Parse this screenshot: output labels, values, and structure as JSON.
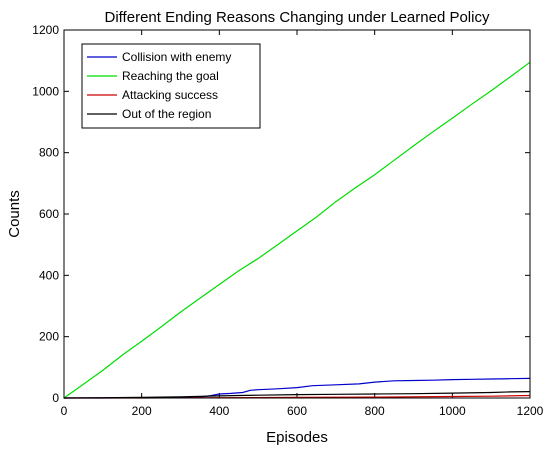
{
  "chart_data": {
    "type": "line",
    "title": "Different Ending Reasons Changing under Learned Policy",
    "xlabel": "Episodes",
    "ylabel": "Counts",
    "xlim": [
      0,
      1200
    ],
    "ylim": [
      0,
      1200
    ],
    "x_ticks": [
      0,
      200,
      400,
      600,
      800,
      1000,
      1200
    ],
    "y_ticks": [
      0,
      200,
      400,
      600,
      800,
      1000,
      1200
    ],
    "grid": false,
    "legend_position": "top-left",
    "series": [
      {
        "name": "Collision with enemy",
        "color": "#0000cc",
        "points": [
          [
            0,
            0
          ],
          [
            100,
            0
          ],
          [
            200,
            1
          ],
          [
            300,
            2
          ],
          [
            350,
            3
          ],
          [
            380,
            8
          ],
          [
            400,
            13
          ],
          [
            430,
            15
          ],
          [
            460,
            18
          ],
          [
            480,
            25
          ],
          [
            500,
            27
          ],
          [
            550,
            30
          ],
          [
            600,
            34
          ],
          [
            640,
            40
          ],
          [
            700,
            43
          ],
          [
            760,
            46
          ],
          [
            800,
            52
          ],
          [
            850,
            56
          ],
          [
            900,
            57
          ],
          [
            950,
            58
          ],
          [
            1000,
            60
          ],
          [
            1050,
            61
          ],
          [
            1100,
            62
          ],
          [
            1150,
            63
          ],
          [
            1200,
            64
          ]
        ]
      },
      {
        "name": "Reaching the goal",
        "color": "#00dd00",
        "points": [
          [
            0,
            0
          ],
          [
            50,
            45
          ],
          [
            100,
            90
          ],
          [
            150,
            140
          ],
          [
            200,
            185
          ],
          [
            250,
            232
          ],
          [
            300,
            280
          ],
          [
            350,
            325
          ],
          [
            400,
            370
          ],
          [
            450,
            415
          ],
          [
            500,
            455
          ],
          [
            550,
            500
          ],
          [
            600,
            545
          ],
          [
            650,
            590
          ],
          [
            700,
            640
          ],
          [
            750,
            685
          ],
          [
            800,
            728
          ],
          [
            850,
            775
          ],
          [
            900,
            822
          ],
          [
            950,
            868
          ],
          [
            1000,
            912
          ],
          [
            1050,
            958
          ],
          [
            1100,
            1002
          ],
          [
            1150,
            1048
          ],
          [
            1200,
            1095
          ]
        ]
      },
      {
        "name": "Attacking success",
        "color": "#cc0000",
        "points": [
          [
            0,
            0
          ],
          [
            200,
            0
          ],
          [
            400,
            1
          ],
          [
            600,
            2
          ],
          [
            800,
            3
          ],
          [
            1000,
            5
          ],
          [
            1100,
            6
          ],
          [
            1200,
            8
          ]
        ]
      },
      {
        "name": "Out of the region",
        "color": "#000000",
        "points": [
          [
            0,
            0
          ],
          [
            100,
            1
          ],
          [
            200,
            2
          ],
          [
            300,
            4
          ],
          [
            400,
            7
          ],
          [
            450,
            8
          ],
          [
            500,
            9
          ],
          [
            600,
            11
          ],
          [
            700,
            12
          ],
          [
            800,
            13
          ],
          [
            900,
            14
          ],
          [
            1000,
            16
          ],
          [
            1100,
            18
          ],
          [
            1150,
            20
          ],
          [
            1200,
            21
          ]
        ]
      }
    ]
  }
}
